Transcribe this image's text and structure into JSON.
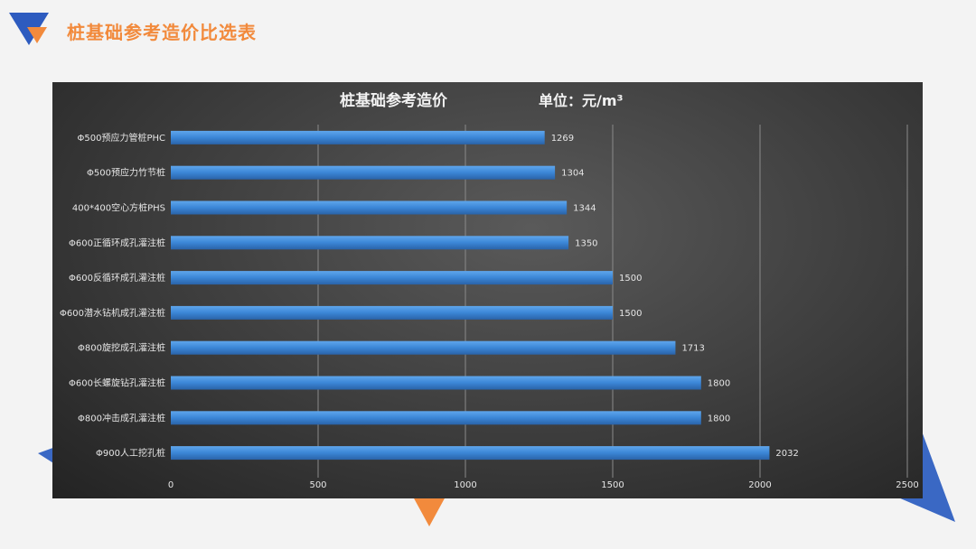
{
  "slide": {
    "title": "桩基础参考造价比选表",
    "accent_color": "#f28a3c",
    "brand_blue": "#3a68c4"
  },
  "chart_data": {
    "type": "bar",
    "orientation": "horizontal",
    "title": "桩基础参考造价",
    "unit_label": "单位：元/m³",
    "categories": [
      "Φ500预应力管桩PHC",
      "Φ500预应力竹节桩",
      "400*400空心方桩PHS",
      "Φ600正循环成孔灌注桩",
      "Φ600反循环成孔灌注桩",
      "Φ600潜水钻机成孔灌注桩",
      "Φ800旋挖成孔灌注桩",
      "Φ600长螺旋钻孔灌注桩",
      "Φ800冲击成孔灌注桩",
      "Φ900人工挖孔桩"
    ],
    "values": [
      1269,
      1304,
      1344,
      1350,
      1500,
      1500,
      1713,
      1800,
      1800,
      2032
    ],
    "xlim": [
      0,
      2500
    ],
    "xticks": [
      0,
      500,
      1000,
      1500,
      2000,
      2500
    ],
    "grid": true,
    "bar_color": "#3b86d6"
  }
}
